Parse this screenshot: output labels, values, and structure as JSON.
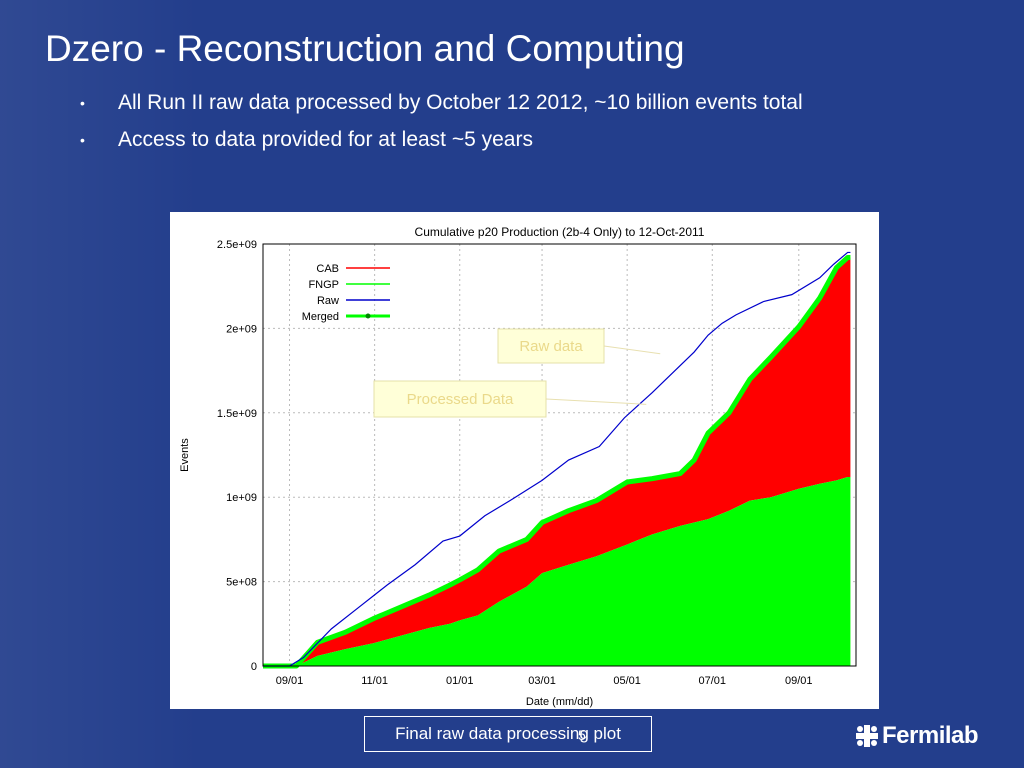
{
  "slide": {
    "title": "Dzero - Reconstruction and Computing",
    "bullets": [
      "All Run II raw data processed by October 12 2012, ~10 billion events total",
      "Access to data provided for at least ~5 years"
    ],
    "caption": "Final raw data processing plot",
    "page_number": "5",
    "logo_text": "Fermilab",
    "logo_icon": "fermilab-logo-icon",
    "colors": {
      "background": "#233e8c",
      "text": "#ffffff"
    }
  },
  "chart_data": {
    "type": "area",
    "title": "Cumulative p20 Production (2b-4 Only) to 12-Oct-2011",
    "xlabel": "Date (mm/dd)",
    "ylabel": "Events",
    "ylim": [
      0,
      2500000000
    ],
    "y_ticks": [
      {
        "value": 0,
        "label": "0"
      },
      {
        "value": 500000000,
        "label": "5e+08"
      },
      {
        "value": 1000000000,
        "label": "1e+09"
      },
      {
        "value": 1500000000,
        "label": "1.5e+09"
      },
      {
        "value": 2000000000,
        "label": "2e+09"
      },
      {
        "value": 2500000000,
        "label": "2.5e+09"
      }
    ],
    "x_ticks": [
      "09/01",
      "11/01",
      "01/01",
      "03/01",
      "05/01",
      "07/01",
      "09/01"
    ],
    "x_tick_positions": [
      0,
      61,
      122,
      181,
      242,
      303,
      365
    ],
    "xlim": [
      -19,
      406
    ],
    "grid": true,
    "legend_position": "top-left",
    "series": [
      {
        "name": "CAB",
        "color": "#ff0000",
        "stacked": true,
        "x": [
          -19,
          5,
          20,
          40,
          60,
          80,
          100,
          115,
          122,
          135,
          150,
          170,
          181,
          200,
          220,
          242,
          260,
          280,
          290,
          300,
          315,
          330,
          345,
          365,
          380,
          392,
          400,
          402
        ],
        "values": [
          0,
          0,
          80000000,
          100000000,
          145000000,
          170000000,
          195000000,
          230000000,
          240000000,
          270000000,
          300000000,
          280000000,
          300000000,
          320000000,
          330000000,
          370000000,
          330000000,
          310000000,
          370000000,
          510000000,
          580000000,
          720000000,
          830000000,
          960000000,
          1100000000,
          1260000000,
          1300000000,
          1300000000
        ]
      },
      {
        "name": "FNGP",
        "color": "#00ff00",
        "stacked": true,
        "x": [
          -19,
          5,
          20,
          40,
          60,
          80,
          100,
          115,
          122,
          135,
          150,
          170,
          181,
          200,
          220,
          242,
          260,
          280,
          290,
          300,
          315,
          330,
          345,
          365,
          380,
          392,
          400,
          402
        ],
        "values": [
          0,
          0,
          60000000,
          100000000,
          135000000,
          180000000,
          225000000,
          250000000,
          270000000,
          300000000,
          380000000,
          470000000,
          550000000,
          600000000,
          650000000,
          720000000,
          780000000,
          830000000,
          850000000,
          870000000,
          920000000,
          980000000,
          1000000000,
          1050000000,
          1080000000,
          1100000000,
          1120000000,
          1120000000
        ]
      },
      {
        "name": "Raw",
        "color": "#0000cc",
        "type": "line",
        "x": [
          -19,
          0,
          10,
          30,
          50,
          70,
          90,
          110,
          122,
          140,
          160,
          181,
          200,
          222,
          240,
          260,
          280,
          290,
          300,
          310,
          320,
          340,
          360,
          380,
          390,
          400,
          402
        ],
        "values": [
          0,
          0,
          50000000,
          220000000,
          350000000,
          480000000,
          600000000,
          740000000,
          770000000,
          890000000,
          990000000,
          1100000000,
          1220000000,
          1300000000,
          1470000000,
          1620000000,
          1780000000,
          1860000000,
          1960000000,
          2030000000,
          2080000000,
          2160000000,
          2200000000,
          2300000000,
          2380000000,
          2450000000,
          2450000000
        ]
      },
      {
        "name": "Merged",
        "color": "#00ff00",
        "type": "line-markers",
        "x": [
          -19,
          5,
          20,
          40,
          60,
          80,
          100,
          115,
          122,
          135,
          150,
          170,
          181,
          200,
          220,
          242,
          260,
          280,
          290,
          300,
          315,
          330,
          345,
          365,
          380,
          392,
          400,
          402
        ],
        "values": [
          0,
          0,
          140000000,
          200000000,
          280000000,
          350000000,
          420000000,
          480000000,
          510000000,
          570000000,
          680000000,
          750000000,
          850000000,
          920000000,
          980000000,
          1090000000,
          1110000000,
          1140000000,
          1220000000,
          1380000000,
          1500000000,
          1700000000,
          1830000000,
          2010000000,
          2180000000,
          2360000000,
          2420000000,
          2420000000
        ]
      }
    ],
    "annotations": [
      {
        "text": "Raw data",
        "target_x": 270,
        "target_y": 1850000000
      },
      {
        "text": "Processed Data",
        "target_x": 260,
        "target_y": 1550000000
      }
    ]
  }
}
